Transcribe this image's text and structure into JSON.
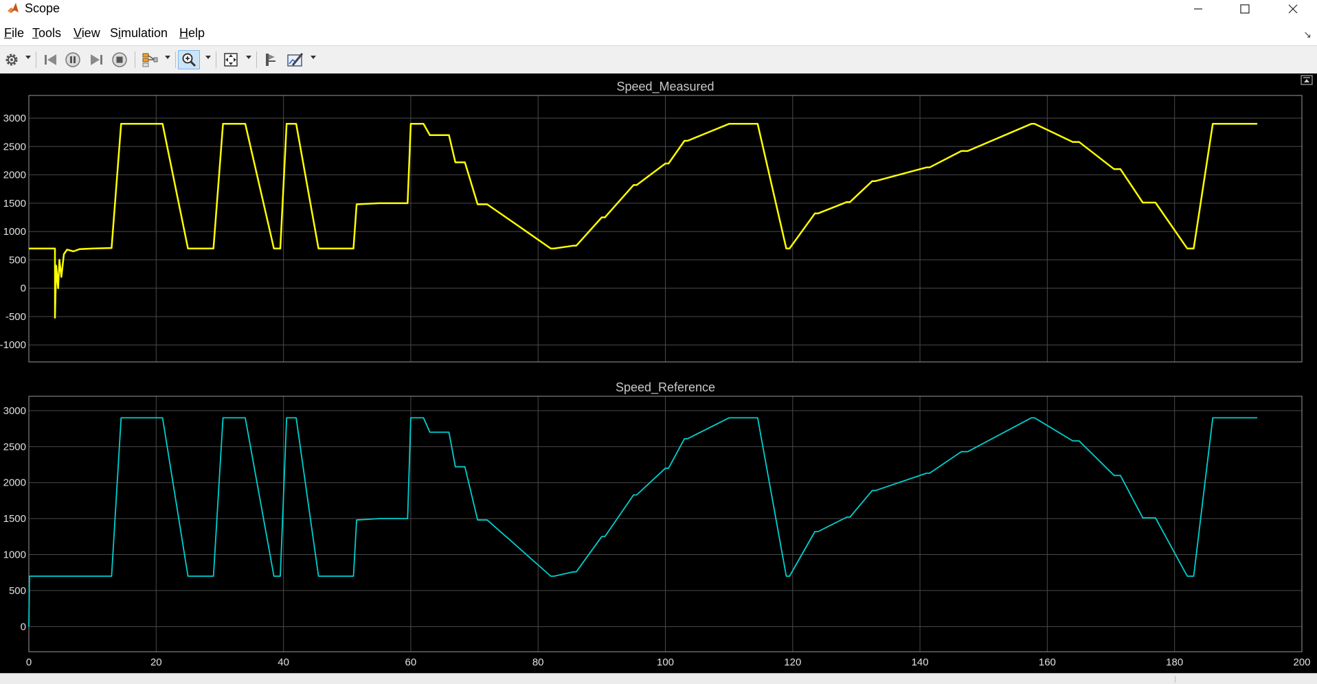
{
  "window": {
    "title": "Scope",
    "icon": "matlab-logo-icon",
    "controls": [
      "minimize-icon",
      "maximize-icon",
      "close-icon"
    ]
  },
  "menu": {
    "items": [
      {
        "label": "File",
        "mnemonic": "F",
        "rest": "ile"
      },
      {
        "label": "Tools",
        "mnemonic": "T",
        "rest": "ools"
      },
      {
        "label": "View",
        "mnemonic": "V",
        "rest": "iew"
      },
      {
        "label": "Simulation",
        "mnemonic": "i",
        "pre": "S",
        "rest": "mulation"
      },
      {
        "label": "Help",
        "mnemonic": "H",
        "rest": "elp"
      }
    ]
  },
  "toolbar": {
    "buttons": [
      "settings-icon",
      "step-back-icon",
      "pause-icon",
      "step-forward-icon",
      "stop-icon",
      "signal-layout-icon",
      "zoom-in-icon",
      "fit-axes-icon",
      "autoscale-icon",
      "measure-icon"
    ],
    "zoom_active": true
  },
  "colors": {
    "measured": "#ffff00",
    "reference": "#00d0d0",
    "grid": "#4a4a4a",
    "axis_text": "#e0e0e0",
    "toolbar_active": "#cce4f7"
  },
  "chart_data": [
    {
      "type": "line",
      "title": "Speed_Measured",
      "xlabel": "",
      "ylabel": "",
      "xlim": [
        0,
        200
      ],
      "ylim": [
        -1300,
        3400
      ],
      "yticks": [
        -1000,
        -500,
        0,
        500,
        1000,
        1500,
        2000,
        2500,
        3000
      ],
      "xticks": [
        0,
        20,
        40,
        60,
        80,
        100,
        120,
        140,
        160,
        180,
        200
      ],
      "grid": true,
      "series": [
        {
          "color": "#ffff00",
          "x": [
            0,
            4.1,
            4.1,
            4.3,
            4.6,
            4.8,
            5.1,
            5.5,
            6,
            7,
            8,
            10,
            13,
            14.5,
            21,
            25,
            29,
            30.5,
            34,
            38.5,
            39.5,
            40.5,
            42,
            45.5,
            51,
            51.5,
            55,
            59.5,
            60,
            62,
            63,
            66,
            67,
            68.5,
            70.5,
            72,
            76,
            82,
            82.5,
            85.5,
            86,
            90,
            90.5,
            95,
            95.5,
            100,
            100.5,
            103,
            103.5,
            110,
            114.5,
            119,
            119.5,
            123.5,
            124,
            128.5,
            129,
            132.5,
            133,
            141,
            141.5,
            146.5,
            147.5,
            157.5,
            158,
            164,
            165,
            170.5,
            171.5,
            175,
            177,
            182,
            183,
            186,
            193
          ],
          "y": [
            700,
            700,
            -520,
            400,
            0,
            500,
            200,
            600,
            680,
            650,
            690,
            700,
            710,
            2900,
            2900,
            700,
            700,
            2900,
            2900,
            700,
            700,
            2900,
            2900,
            700,
            700,
            1480,
            1500,
            1500,
            2900,
            2900,
            2700,
            2700,
            2220,
            2220,
            1480,
            1480,
            1170,
            700,
            700,
            750,
            750,
            1250,
            1250,
            1820,
            1820,
            2200,
            2200,
            2600,
            2600,
            2900,
            2900,
            700,
            700,
            1320,
            1320,
            1520,
            1520,
            1890,
            1890,
            2130,
            2130,
            2420,
            2420,
            2900,
            2900,
            2580,
            2580,
            2100,
            2100,
            1510,
            1510,
            700,
            700,
            2900,
            2900
          ]
        }
      ]
    },
    {
      "type": "line",
      "title": "Speed_Reference",
      "xlabel": "",
      "ylabel": "",
      "xlim": [
        0,
        200
      ],
      "ylim": [
        -350,
        3200
      ],
      "yticks": [
        0,
        500,
        1000,
        1500,
        2000,
        2500,
        3000
      ],
      "xticks": [
        0,
        20,
        40,
        60,
        80,
        100,
        120,
        140,
        160,
        180,
        200
      ],
      "grid": true,
      "series": [
        {
          "color": "#00d0d0",
          "x": [
            0,
            0.1,
            13,
            14.5,
            21,
            25,
            29,
            30.5,
            34,
            38.5,
            39.5,
            40.5,
            42,
            45.5,
            51,
            51.5,
            55,
            59.5,
            60,
            62,
            63,
            66,
            67,
            68.5,
            70.5,
            72,
            76,
            82,
            82.5,
            85.5,
            86,
            90,
            90.5,
            95,
            95.5,
            100,
            100.5,
            103,
            103.5,
            110,
            114.5,
            119,
            119.5,
            123.5,
            124,
            128.5,
            129,
            132.5,
            133,
            141,
            141.5,
            146.5,
            147.5,
            157.5,
            158,
            164,
            165,
            170.5,
            171.5,
            175,
            177,
            182,
            183,
            186,
            193
          ],
          "y": [
            0,
            700,
            700,
            2900,
            2900,
            700,
            700,
            2900,
            2900,
            700,
            700,
            2900,
            2900,
            700,
            700,
            1480,
            1500,
            1500,
            2900,
            2900,
            2700,
            2700,
            2220,
            2220,
            1480,
            1480,
            1170,
            700,
            700,
            760,
            760,
            1250,
            1250,
            1830,
            1830,
            2200,
            2200,
            2610,
            2610,
            2900,
            2900,
            700,
            700,
            1320,
            1320,
            1520,
            1520,
            1890,
            1890,
            2130,
            2130,
            2430,
            2430,
            2900,
            2900,
            2580,
            2580,
            2100,
            2100,
            1510,
            1510,
            700,
            700,
            2900,
            2900
          ]
        }
      ]
    }
  ]
}
